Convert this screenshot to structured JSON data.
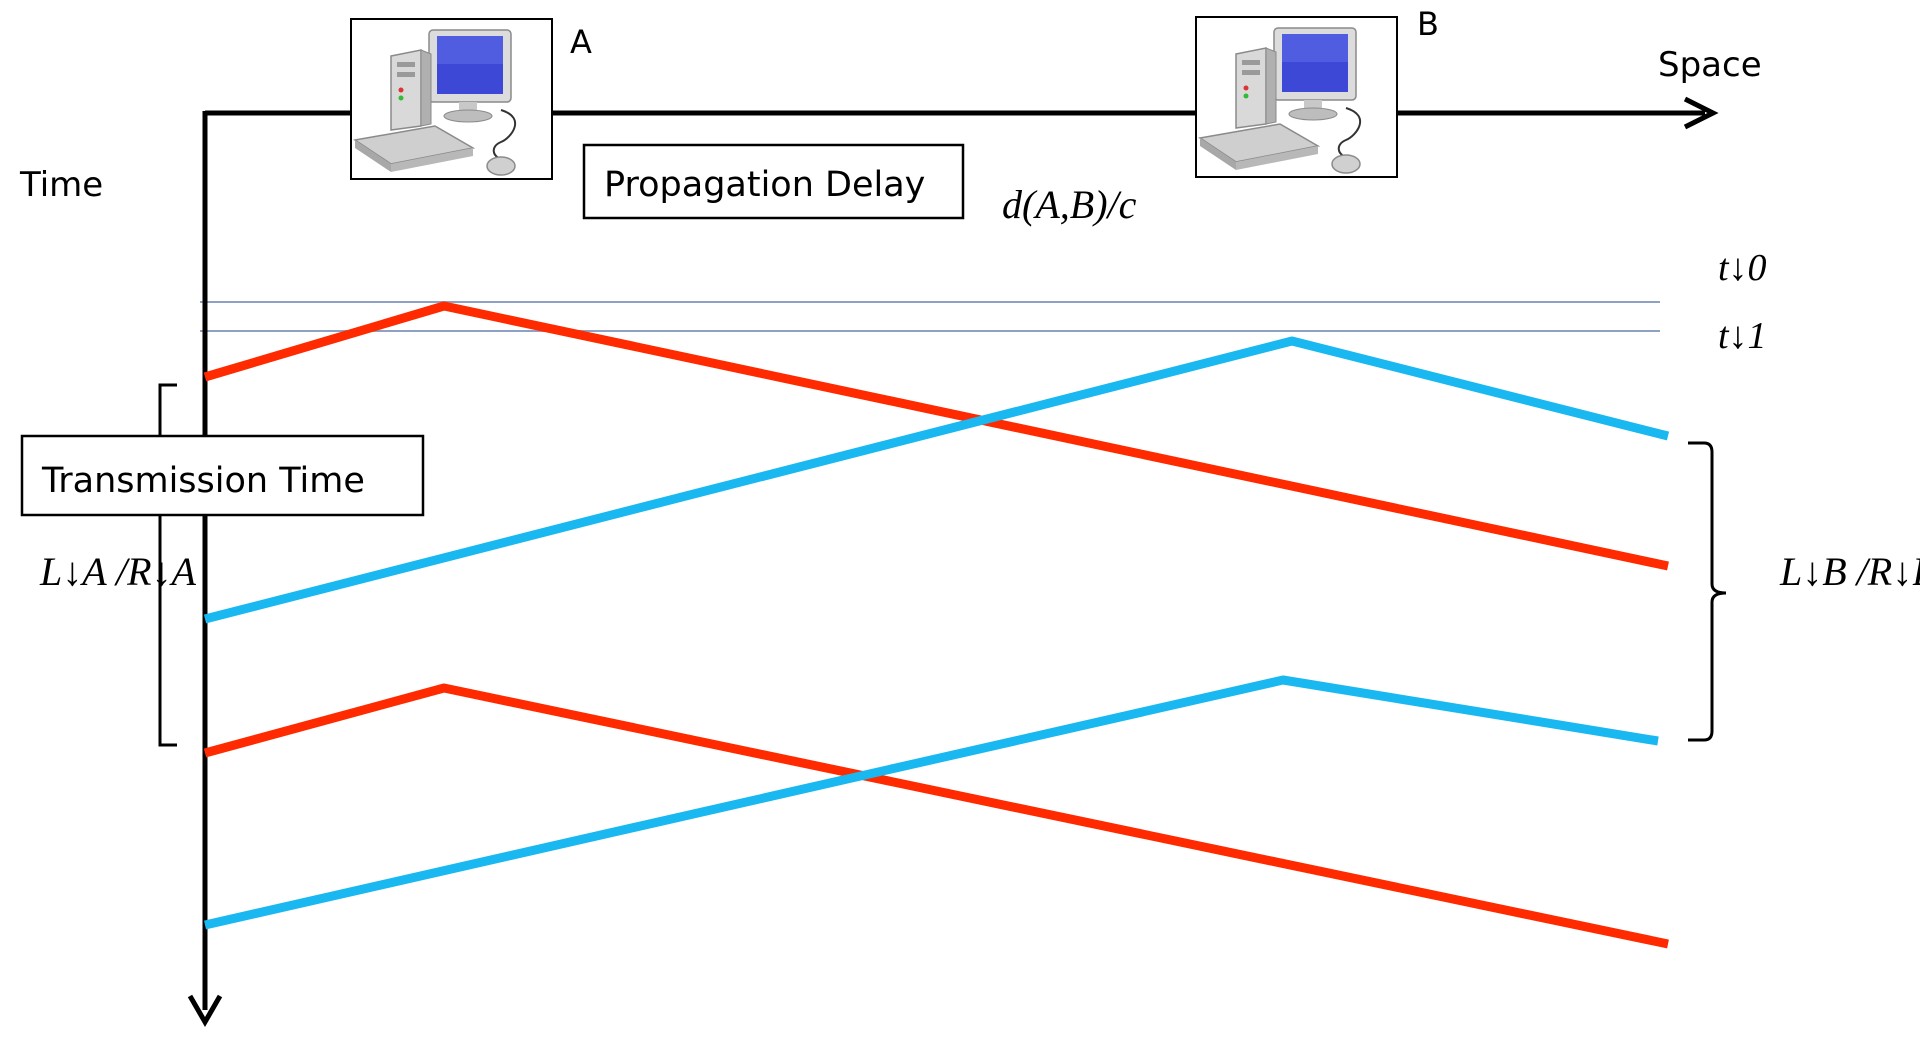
{
  "labels": {
    "host_a": "A",
    "host_b": "B",
    "space_axis": "Space",
    "time_axis": "Time",
    "propagation_delay": "Propagation Delay",
    "propagation_formula": "d(A,B)/c",
    "t0": "t↓0",
    "t1": "t↓1",
    "transmission_time": "Transmission Time",
    "la_over_ra": "L↓A /R↓A",
    "lb_over_rb": "L↓B /R↓B"
  },
  "colors": {
    "host_a_signal": "#ff2a00",
    "host_b_signal": "#1ab8f0",
    "axis": "#000000",
    "reference_line": "#8ea2c6"
  },
  "icons": {
    "host_a": "desktop-computer-icon",
    "host_b": "desktop-computer-icon"
  }
}
